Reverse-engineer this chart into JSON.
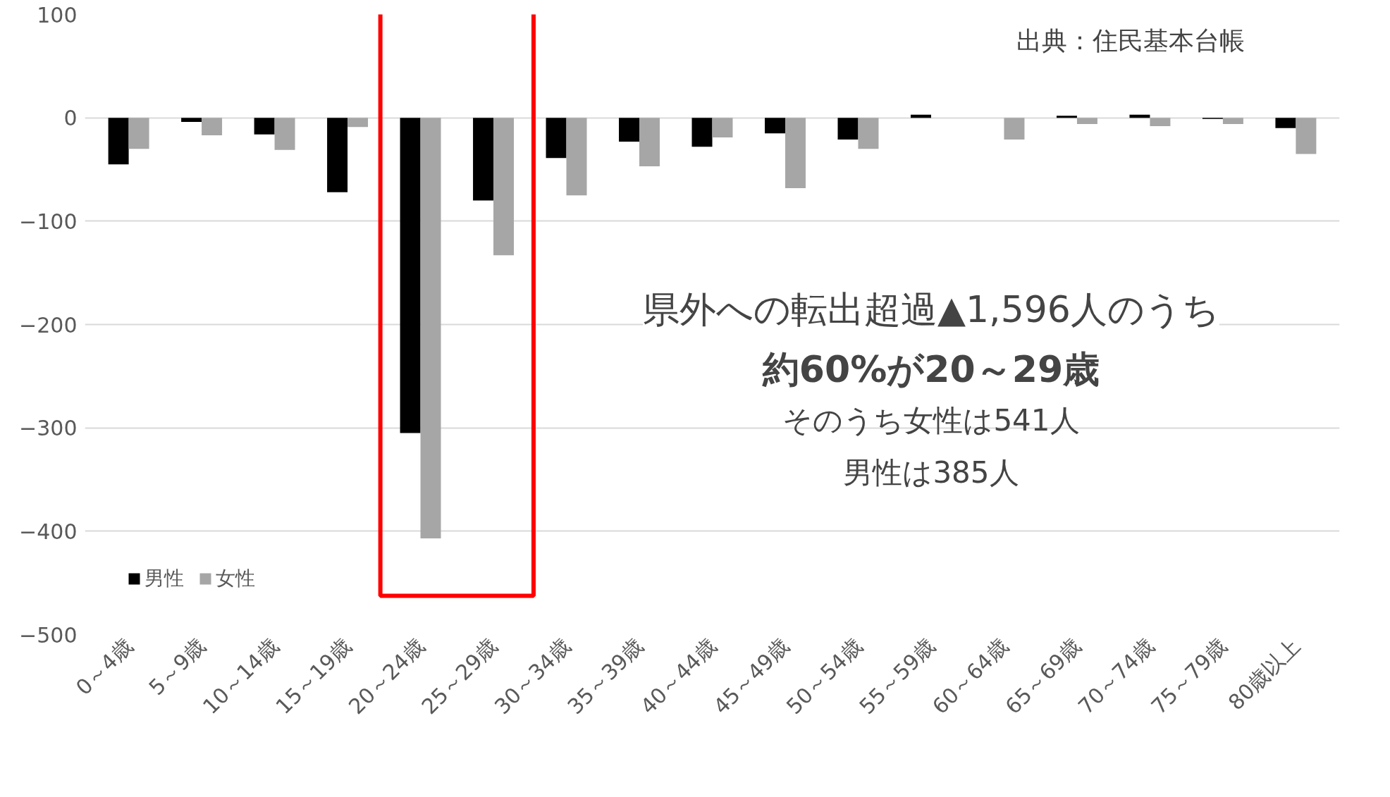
{
  "chart_data": {
    "type": "bar",
    "categories": [
      "0～4歳",
      "5～9歳",
      "10～14歳",
      "15～19歳",
      "20～24歳",
      "25～29歳",
      "30～34歳",
      "35～39歳",
      "40～44歳",
      "45～49歳",
      "50～54歳",
      "55～59歳",
      "60～64歳",
      "65～69歳",
      "70～74歳",
      "75～79歳",
      "80歳以上"
    ],
    "series": [
      {
        "name": "男性",
        "color": "#000000",
        "values": [
          -45,
          -4,
          -16,
          -72,
          -305,
          -80,
          -39,
          -23,
          -28,
          -15,
          -21,
          3,
          0,
          2,
          3,
          -1,
          -10
        ]
      },
      {
        "name": "女性",
        "color": "#a6a6a6",
        "values": [
          -30,
          -17,
          -31,
          -9,
          -407,
          -133,
          -75,
          -47,
          -19,
          -68,
          -30,
          null,
          -21,
          -6,
          -8,
          -6,
          -35
        ]
      }
    ],
    "ylim": [
      -500,
      100
    ],
    "yticks": [
      100,
      0,
      -100,
      -200,
      -300,
      -400,
      -500
    ],
    "grid": "y",
    "legend": "bottom left",
    "annotations": [
      "出典：住民基本台帳",
      "県外への転出超過▲1,596人のうち",
      "約60%が20～29歳",
      "そのうち女性は541人",
      "男性は385人"
    ]
  }
}
